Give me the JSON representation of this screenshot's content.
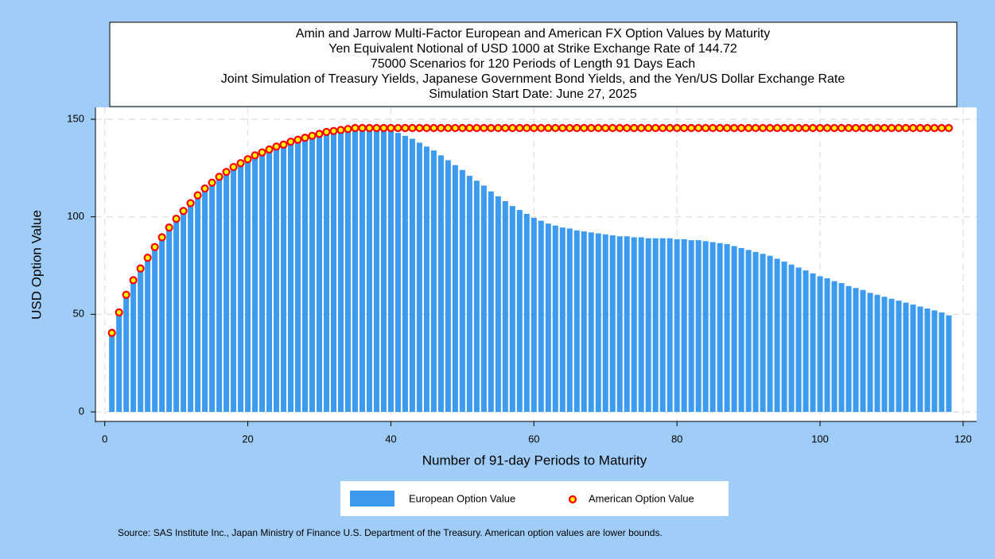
{
  "chart_data": {
    "type": "bar_scatter",
    "title": [
      "Amin and Jarrow Multi-Factor European and American FX Option Values by Maturity",
      "Yen Equivalent Notional of USD 1000 at Strike Exchange Rate of 144.72",
      "75000 Scenarios for 120 Periods of Length 91 Days Each",
      "Joint Simulation of Treasury Yields, Japanese Government Bond Yields, and the Yen/US Dollar Exchange Rate",
      "Simulation Start Date: June 27, 2025"
    ],
    "x_label": "Number of 91-day Periods to Maturity",
    "y_label": "USD Option Value",
    "source": "Source: SAS Institute Inc., Japan Ministry of Finance U.S. Department of the Treasury. American option values are lower bounds.",
    "x": [
      1,
      2,
      3,
      4,
      5,
      6,
      7,
      8,
      9,
      10,
      11,
      12,
      13,
      14,
      15,
      16,
      17,
      18,
      19,
      20,
      21,
      22,
      23,
      24,
      25,
      26,
      27,
      28,
      29,
      30,
      31,
      32,
      33,
      34,
      35,
      36,
      37,
      38,
      39,
      40,
      41,
      42,
      43,
      44,
      45,
      46,
      47,
      48,
      49,
      50,
      51,
      52,
      53,
      54,
      55,
      56,
      57,
      58,
      59,
      60,
      61,
      62,
      63,
      64,
      65,
      66,
      67,
      68,
      69,
      70,
      71,
      72,
      73,
      74,
      75,
      76,
      77,
      78,
      79,
      80,
      81,
      82,
      83,
      84,
      85,
      86,
      87,
      88,
      89,
      90,
      91,
      92,
      93,
      94,
      95,
      96,
      97,
      98,
      99,
      100,
      101,
      102,
      103,
      104,
      105,
      106,
      107,
      108,
      109,
      110,
      111,
      112,
      113,
      114,
      115,
      116,
      117,
      118
    ],
    "series": [
      {
        "name": "European Option Value",
        "kind": "bar",
        "color": "#3d9bef",
        "values": [
          40.5,
          51,
          60,
          67.5,
          73.5,
          79,
          84.5,
          89.5,
          94.5,
          99,
          103,
          107,
          111,
          114.5,
          117.5,
          120.5,
          123,
          125.5,
          127.5,
          129.5,
          131.5,
          133,
          134.5,
          136,
          137,
          138.5,
          139.5,
          140.5,
          141.5,
          142.5,
          143.5,
          144,
          144.5,
          145,
          145,
          145,
          145,
          145,
          144.5,
          144,
          143,
          141.5,
          140,
          138,
          136,
          134,
          131.5,
          129,
          126.5,
          124,
          121,
          118.5,
          116,
          113,
          110.5,
          108,
          105.5,
          103.5,
          101.5,
          99.5,
          98,
          96.5,
          95.5,
          94.5,
          94,
          93,
          92.5,
          92,
          91.5,
          91,
          90.5,
          90,
          90,
          89.5,
          89.5,
          89,
          89,
          89,
          89,
          88.5,
          88.5,
          88,
          88,
          87.5,
          87,
          86.5,
          86,
          85,
          84,
          83,
          82,
          81,
          80,
          78.5,
          77,
          75.5,
          74,
          72.5,
          71,
          69.5,
          68.5,
          67,
          66,
          64.5,
          63.5,
          62.5,
          61,
          60,
          59,
          58,
          57,
          56,
          55,
          54,
          53,
          52,
          51,
          49.5
        ]
      },
      {
        "name": "American Option Value",
        "kind": "scatter",
        "color": "#ffff00",
        "edge_color": "#ff0000",
        "values": [
          40.5,
          51,
          60,
          67.5,
          73.5,
          79,
          84.5,
          89.5,
          94.5,
          99,
          103,
          107,
          111,
          114.5,
          117.5,
          120.5,
          123,
          125.5,
          127.5,
          129.5,
          131.5,
          133,
          134.5,
          136,
          137,
          138.5,
          139.5,
          140.5,
          141.5,
          142.5,
          143.5,
          144,
          144.5,
          145,
          145.5,
          145.5,
          145.5,
          145.5,
          145.5,
          145.5,
          145.5,
          145.5,
          145.5,
          145.5,
          145.5,
          145.5,
          145.5,
          145.5,
          145.5,
          145.5,
          145.5,
          145.5,
          145.5,
          145.5,
          145.5,
          145.5,
          145.5,
          145.5,
          145.5,
          145.5,
          145.5,
          145.5,
          145.5,
          145.5,
          145.5,
          145.5,
          145.5,
          145.5,
          145.5,
          145.5,
          145.5,
          145.5,
          145.5,
          145.5,
          145.5,
          145.5,
          145.5,
          145.5,
          145.5,
          145.5,
          145.5,
          145.5,
          145.5,
          145.5,
          145.5,
          145.5,
          145.5,
          145.5,
          145.5,
          145.5,
          145.5,
          145.5,
          145.5,
          145.5,
          145.5,
          145.5,
          145.5,
          145.5,
          145.5,
          145.5,
          145.5,
          145.5,
          145.5,
          145.5,
          145.5,
          145.5,
          145.5,
          145.5,
          145.5,
          145.5,
          145.5,
          145.5,
          145.5,
          145.5,
          145.5,
          145.5,
          145.5,
          145.5
        ]
      }
    ],
    "xlim": [
      -1.3,
      121.9
    ],
    "xticks": [
      0,
      20,
      40,
      60,
      80,
      100,
      120
    ],
    "ylim": [
      -4.9,
      156.1
    ],
    "yticks": [
      0,
      50,
      100,
      150
    ],
    "grid": true,
    "legend": "bottom"
  }
}
